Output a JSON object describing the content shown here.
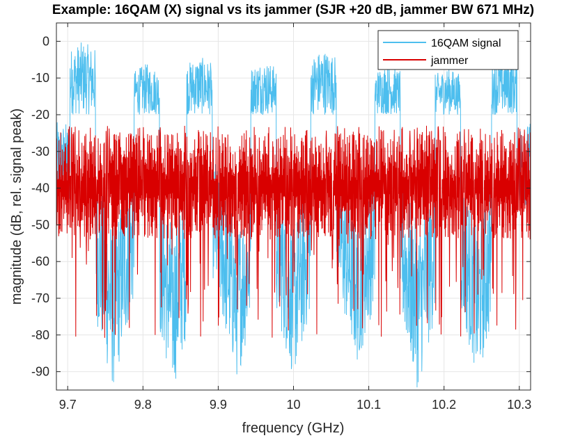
{
  "chart_data": {
    "type": "line",
    "title": "Example: 16QAM (X) signal vs its jammer  (SJR +20 dB, jammer BW 671 MHz)",
    "xlabel": "frequency (GHz)",
    "ylabel": "magnitude (dB, rel. signal peak)",
    "xlim": [
      9.685,
      10.315
    ],
    "ylim": [
      -95,
      5
    ],
    "x_ticks": [
      9.7,
      9.8,
      9.9,
      10.0,
      10.1,
      10.2,
      10.3
    ],
    "x_tick_labels": [
      "9.7",
      "9.8",
      "9.9",
      "10",
      "10.1",
      "10.2",
      "10.3"
    ],
    "y_ticks": [
      0,
      -10,
      -20,
      -30,
      -40,
      -50,
      -60,
      -70,
      -80,
      -90
    ],
    "y_tick_labels": [
      "0",
      "-10",
      "-20",
      "-30",
      "-40",
      "-50",
      "-60",
      "-70",
      "-80",
      "-90"
    ],
    "grid": true,
    "legend_position": "top-right",
    "series": [
      {
        "name": "16QAM signal",
        "color": "#4DBEEE",
        "channel_centers": [
          9.72,
          9.805,
          9.875,
          9.96,
          10.04,
          10.125,
          10.205,
          10.28
        ],
        "channel_peaks_db": [
          0,
          -6,
          -4,
          -5,
          -2,
          -6,
          -7,
          -3
        ],
        "channel_plateau_db": -12,
        "channel_halfwidth": 0.017,
        "trough_centers": [
          9.76,
          9.84,
          9.925,
          10.0,
          10.085,
          10.165,
          10.245
        ],
        "trough_floor_db": [
          -95,
          -95,
          -92,
          -92,
          -88,
          -95,
          -92
        ]
      },
      {
        "name": "jammer",
        "color": "#D90000",
        "band_center": 10.0,
        "bandwidth_mhz": 671,
        "level_top_db": -25,
        "level_bottom_db": -55,
        "spike_min_db": -84
      }
    ]
  }
}
